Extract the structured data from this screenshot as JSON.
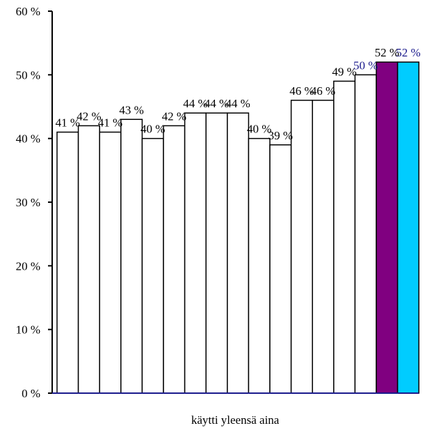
{
  "chart_data": {
    "type": "bar",
    "categories": [
      "käytti yleensä aina"
    ],
    "ylim": [
      0,
      60
    ],
    "ytick_step": 10,
    "ytick_labels": [
      "0 %",
      "10 %",
      "20 %",
      "30 %",
      "40 %",
      "50 %",
      "60 %"
    ],
    "grid": false,
    "legend": "none",
    "xlabel": "",
    "ylabel": "",
    "title": "",
    "series": [
      {
        "value": 41,
        "label": "41 %",
        "color": "#ffffff",
        "label_color": "#000000"
      },
      {
        "value": 42,
        "label": "42 %",
        "color": "#ffffff",
        "label_color": "#000000"
      },
      {
        "value": 41,
        "label": "41 %",
        "color": "#ffffff",
        "label_color": "#000000"
      },
      {
        "value": 43,
        "label": "43 %",
        "color": "#ffffff",
        "label_color": "#000000"
      },
      {
        "value": 40,
        "label": "40 %",
        "color": "#ffffff",
        "label_color": "#000000"
      },
      {
        "value": 42,
        "label": "42 %",
        "color": "#ffffff",
        "label_color": "#000000"
      },
      {
        "value": 44,
        "label": "44 %",
        "color": "#ffffff",
        "label_color": "#000000"
      },
      {
        "value": 44,
        "label": "44 %",
        "color": "#ffffff",
        "label_color": "#000000"
      },
      {
        "value": 44,
        "label": "44 %",
        "color": "#ffffff",
        "label_color": "#000000"
      },
      {
        "value": 40,
        "label": "40 %",
        "color": "#ffffff",
        "label_color": "#000000"
      },
      {
        "value": 39,
        "label": "39 %",
        "color": "#ffffff",
        "label_color": "#000000"
      },
      {
        "value": 46,
        "label": "46 %",
        "color": "#ffffff",
        "label_color": "#000000"
      },
      {
        "value": 46,
        "label": "46 %",
        "color": "#ffffff",
        "label_color": "#000000"
      },
      {
        "value": 49,
        "label": "49 %",
        "color": "#ffffff",
        "label_color": "#000000"
      },
      {
        "value": 50,
        "label": "50 %",
        "color": "#ffffff",
        "label_color": "#1a1a8c"
      },
      {
        "value": 52,
        "label": "52 %",
        "color": "#800080",
        "label_color": "#000000"
      },
      {
        "value": 52,
        "label": "52 %",
        "color": "#00ccff",
        "label_color": "#1a1a8c"
      }
    ]
  }
}
